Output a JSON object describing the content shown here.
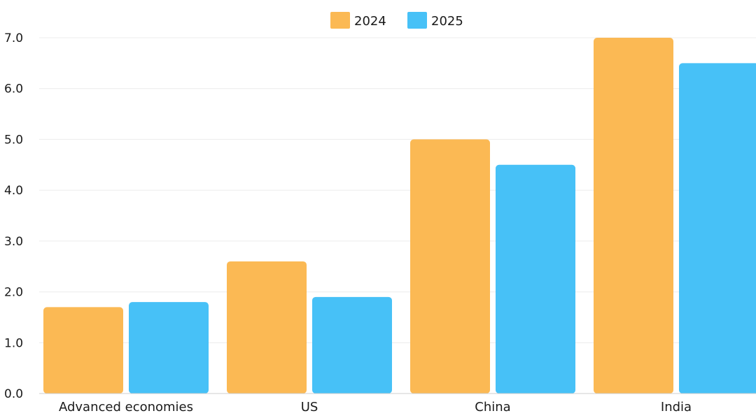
{
  "chart_data": {
    "type": "bar",
    "title": "",
    "xlabel": "",
    "ylabel": "",
    "categories": [
      "Advanced economies",
      "US",
      "China",
      "India"
    ],
    "series": [
      {
        "name": "2024",
        "color": "#FBB954",
        "values": [
          1.7,
          2.6,
          5.0,
          7.0
        ]
      },
      {
        "name": "2025",
        "color": "#47C1F7",
        "values": [
          1.8,
          1.9,
          4.5,
          6.5
        ]
      }
    ],
    "ylim": [
      0,
      7
    ],
    "yticks": [
      "0.0",
      "1.0",
      "2.0",
      "3.0",
      "4.0",
      "5.0",
      "6.0",
      "7.0"
    ],
    "grid": true,
    "legend_position": "top-center"
  }
}
